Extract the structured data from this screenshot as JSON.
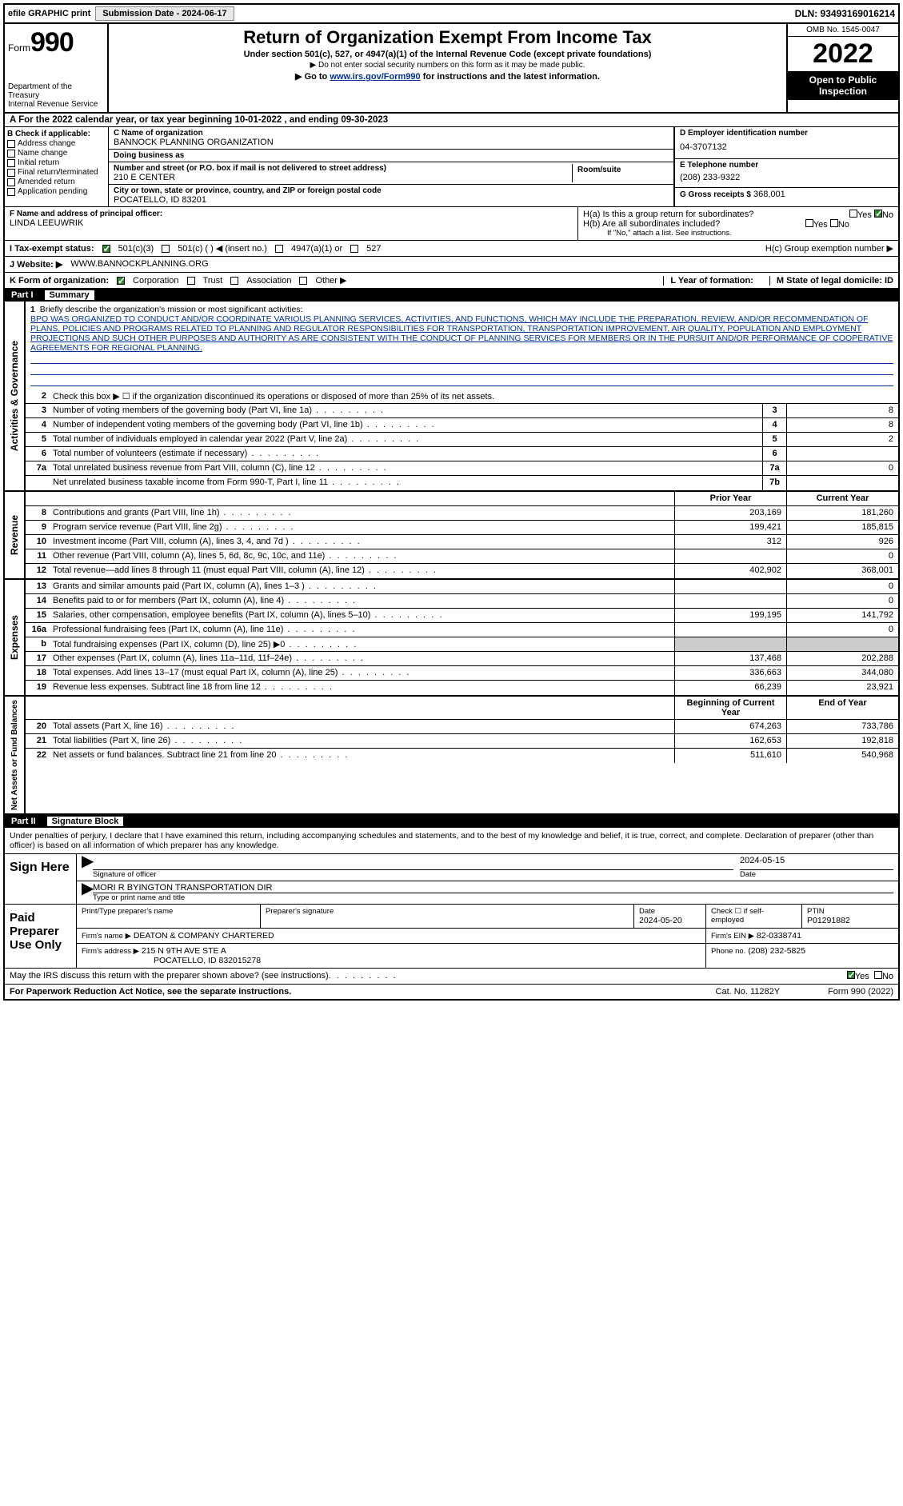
{
  "topbar": {
    "efile": "efile GRAPHIC print",
    "submission_label": "Submission Date - 2024-06-17",
    "dln": "DLN: 93493169016214"
  },
  "header": {
    "form_prefix": "Form",
    "form_num": "990",
    "dept": "Department of the Treasury",
    "irs": "Internal Revenue Service",
    "title": "Return of Organization Exempt From Income Tax",
    "subtitle": "Under section 501(c), 527, or 4947(a)(1) of the Internal Revenue Code (except private foundations)",
    "note1": "▶ Do not enter social security numbers on this form as it may be made public.",
    "note2_pre": "▶ Go to ",
    "note2_link": "www.irs.gov/Form990",
    "note2_post": " for instructions and the latest information.",
    "omb": "OMB No. 1545-0047",
    "year": "2022",
    "inspection": "Open to Public Inspection"
  },
  "period": {
    "text": "A For the 2022 calendar year, or tax year beginning 10-01-2022   , and ending 09-30-2023"
  },
  "checkB": {
    "header": "B Check if applicable:",
    "items": [
      "Address change",
      "Name change",
      "Initial return",
      "Final return/terminated",
      "Amended return",
      "Application pending"
    ]
  },
  "org": {
    "c_label": "C Name of organization",
    "c_name": "BANNOCK PLANNING ORGANIZATION",
    "dba_label": "Doing business as",
    "dba": "",
    "addr_label": "Number and street (or P.O. box if mail is not delivered to street address)",
    "room_label": "Room/suite",
    "addr": "210 E CENTER",
    "city_label": "City or town, state or province, country, and ZIP or foreign postal code",
    "city": "POCATELLO, ID  83201"
  },
  "colD": {
    "d_label": "D Employer identification number",
    "d_val": "04-3707132",
    "e_label": "E Telephone number",
    "e_val": "(208) 233-9322",
    "g_label": "G Gross receipts $",
    "g_val": "368,001"
  },
  "f": {
    "label": "F  Name and address of principal officer:",
    "name": "LINDA LEEUWRIK"
  },
  "h": {
    "ha": "H(a)  Is this a group return for subordinates?",
    "hb": "H(b)  Are all subordinates included?",
    "hb_note": "If \"No,\" attach a list. See instructions.",
    "hc": "H(c)  Group exemption number ▶",
    "yes": "Yes",
    "no": "No"
  },
  "i": {
    "label": "I    Tax-exempt status:",
    "opts": [
      "501(c)(3)",
      "501(c) (  )  ◀ (insert no.)",
      "4947(a)(1) or",
      "527"
    ]
  },
  "j": {
    "label": "J   Website: ▶",
    "val": "WWW.BANNOCKPLANNING.ORG"
  },
  "k": {
    "label": "K Form of organization:",
    "opts": [
      "Corporation",
      "Trust",
      "Association",
      "Other ▶"
    ],
    "l_label": "L Year of formation:",
    "l_val": "",
    "m_label": "M State of legal domicile: ID"
  },
  "part1": {
    "label": "Part I",
    "title": "Summary"
  },
  "mission": {
    "num": "1",
    "label": "Briefly describe the organization's mission or most significant activities:",
    "text": "BPO WAS ORGANIZED TO CONDUCT AND/OR COORDINATE VARIOUS PLANNING SERVICES, ACTIVITIES, AND FUNCTIONS, WHICH MAY INCLUDE THE PREPARATION, REVIEW, AND/OR RECOMMENDATION OF PLANS, POLICIES AND PROGRAMS RELATED TO PLANNING AND REGULATOR RESPONSIBILITIES FOR TRANSPORTATION, TRANSPORTATION IMPROVEMENT, AIR QUALITY, POPULATION AND EMPLOYMENT PROJECTIONS AND SUCH OTHER PURPOSES AND AUTHORITY AS ARE CONSISTENT WITH THE CONDUCT OF PLANNING SERVICES FOR MEMBERS OR IN THE PURSUIT AND/OR PERFORMANCE OF COOPERATIVE AGREEMENTS FOR REGIONAL PLANNING."
  },
  "activities": {
    "sect_label": "Activities & Governance",
    "l2": "Check this box ▶ ☐ if the organization discontinued its operations or disposed of more than 25% of its net assets.",
    "lines": [
      {
        "n": "3",
        "t": "Number of voting members of the governing body (Part VI, line 1a)",
        "box": "3",
        "v": "8"
      },
      {
        "n": "4",
        "t": "Number of independent voting members of the governing body (Part VI, line 1b)",
        "box": "4",
        "v": "8"
      },
      {
        "n": "5",
        "t": "Total number of individuals employed in calendar year 2022 (Part V, line 2a)",
        "box": "5",
        "v": "2"
      },
      {
        "n": "6",
        "t": "Total number of volunteers (estimate if necessary)",
        "box": "6",
        "v": ""
      },
      {
        "n": "7a",
        "t": "Total unrelated business revenue from Part VIII, column (C), line 12",
        "box": "7a",
        "v": "0"
      },
      {
        "n": "",
        "t": "Net unrelated business taxable income from Form 990-T, Part I, line 11",
        "box": "7b",
        "v": ""
      }
    ]
  },
  "revenue": {
    "sect_label": "Revenue",
    "hdr_prior": "Prior Year",
    "hdr_curr": "Current Year",
    "lines": [
      {
        "n": "8",
        "t": "Contributions and grants (Part VIII, line 1h)",
        "p": "203,169",
        "c": "181,260"
      },
      {
        "n": "9",
        "t": "Program service revenue (Part VIII, line 2g)",
        "p": "199,421",
        "c": "185,815"
      },
      {
        "n": "10",
        "t": "Investment income (Part VIII, column (A), lines 3, 4, and 7d )",
        "p": "312",
        "c": "926"
      },
      {
        "n": "11",
        "t": "Other revenue (Part VIII, column (A), lines 5, 6d, 8c, 9c, 10c, and 11e)",
        "p": "",
        "c": "0"
      },
      {
        "n": "12",
        "t": "Total revenue—add lines 8 through 11 (must equal Part VIII, column (A), line 12)",
        "p": "402,902",
        "c": "368,001"
      }
    ]
  },
  "expenses": {
    "sect_label": "Expenses",
    "lines": [
      {
        "n": "13",
        "t": "Grants and similar amounts paid (Part IX, column (A), lines 1–3 )",
        "p": "",
        "c": "0"
      },
      {
        "n": "14",
        "t": "Benefits paid to or for members (Part IX, column (A), line 4)",
        "p": "",
        "c": "0"
      },
      {
        "n": "15",
        "t": "Salaries, other compensation, employee benefits (Part IX, column (A), lines 5–10)",
        "p": "199,195",
        "c": "141,792"
      },
      {
        "n": "16a",
        "t": "Professional fundraising fees (Part IX, column (A), line 11e)",
        "p": "",
        "c": "0"
      },
      {
        "n": "b",
        "t": "Total fundraising expenses (Part IX, column (D), line 25) ▶0",
        "p": "shade",
        "c": "shade"
      },
      {
        "n": "17",
        "t": "Other expenses (Part IX, column (A), lines 11a–11d, 11f–24e)",
        "p": "137,468",
        "c": "202,288"
      },
      {
        "n": "18",
        "t": "Total expenses. Add lines 13–17 (must equal Part IX, column (A), line 25)",
        "p": "336,663",
        "c": "344,080"
      },
      {
        "n": "19",
        "t": "Revenue less expenses. Subtract line 18 from line 12",
        "p": "66,239",
        "c": "23,921"
      }
    ]
  },
  "netassets": {
    "sect_label": "Net Assets or Fund Balances",
    "hdr_beg": "Beginning of Current Year",
    "hdr_end": "End of Year",
    "lines": [
      {
        "n": "20",
        "t": "Total assets (Part X, line 16)",
        "p": "674,263",
        "c": "733,786"
      },
      {
        "n": "21",
        "t": "Total liabilities (Part X, line 26)",
        "p": "162,653",
        "c": "192,818"
      },
      {
        "n": "22",
        "t": "Net assets or fund balances. Subtract line 21 from line 20",
        "p": "511,610",
        "c": "540,968"
      }
    ]
  },
  "part2": {
    "label": "Part II",
    "title": "Signature Block",
    "declare": "Under penalties of perjury, I declare that I have examined this return, including accompanying schedules and statements, and to the best of my knowledge and belief, it is true, correct, and complete. Declaration of preparer (other than officer) is based on all information of which preparer has any knowledge."
  },
  "sign": {
    "label": "Sign Here",
    "sig_of_officer": "Signature of officer",
    "date_label": "Date",
    "date": "2024-05-15",
    "name": "MORI R BYINGTON  TRANSPORTATION DIR",
    "name_label": "Type or print name and title"
  },
  "preparer": {
    "label": "Paid Preparer Use Only",
    "print_label": "Print/Type preparer's name",
    "print_val": "",
    "sig_label": "Preparer's signature",
    "date_label": "Date",
    "date": "2024-05-20",
    "self_emp": "Check ☐ if self-employed",
    "ptin_label": "PTIN",
    "ptin": "P01291882",
    "firm_name_label": "Firm's name    ▶",
    "firm_name": "DEATON & COMPANY CHARTERED",
    "firm_ein_label": "Firm's EIN ▶",
    "firm_ein": "82-0338741",
    "firm_addr_label": "Firm's address ▶",
    "firm_addr1": "215 N 9TH AVE STE A",
    "firm_addr2": "POCATELLO, ID  832015278",
    "phone_label": "Phone no.",
    "phone": "(208) 232-5825"
  },
  "footer": {
    "discuss": "May the IRS discuss this return with the preparer shown above? (see instructions)",
    "paperwork": "For Paperwork Reduction Act Notice, see the separate instructions.",
    "cat": "Cat. No. 11282Y",
    "form": "Form 990 (2022)",
    "yes": "Yes",
    "no": "No"
  }
}
